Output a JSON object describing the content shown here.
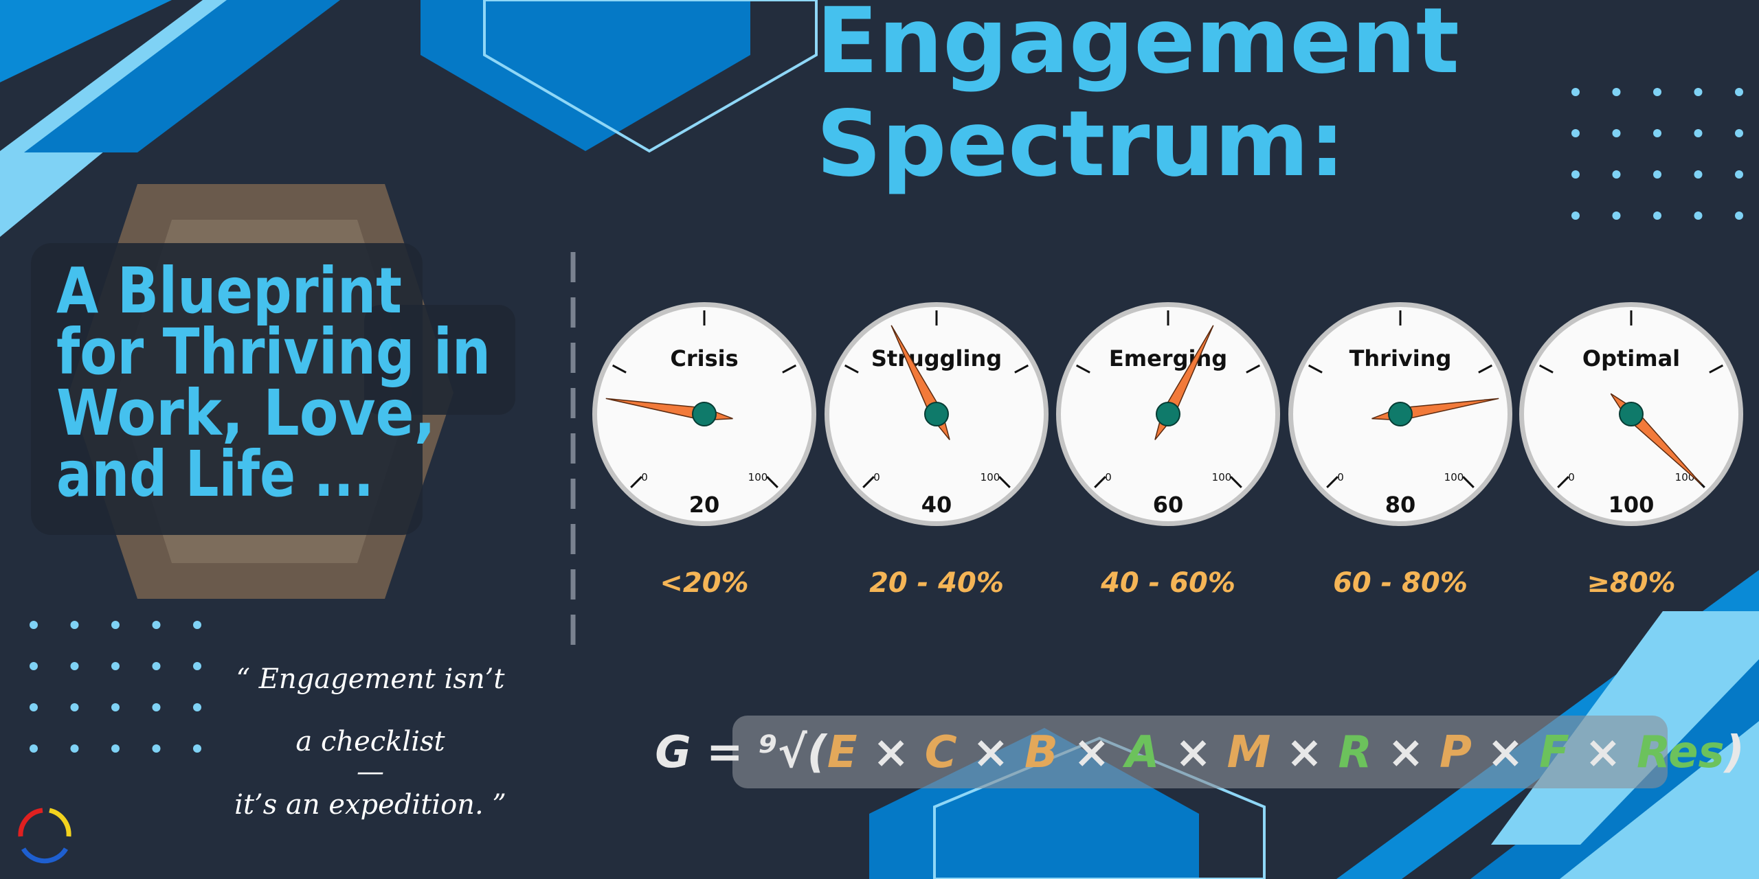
{
  "title_lines": [
    "Engagement",
    "Spectrum:"
  ],
  "subtitle_lines": [
    "A Blueprint",
    "for Thriving in",
    "Work, Love,",
    "and Life ..."
  ],
  "gauge_scale": {
    "min": 0,
    "max": 100
  },
  "gauges": [
    {
      "label": "Crisis",
      "value": 20,
      "range": "<20%"
    },
    {
      "label": "Struggling",
      "value": 40,
      "range": "20 - 40%"
    },
    {
      "label": "Emerging",
      "value": 60,
      "range": "40 - 60%"
    },
    {
      "label": "Thriving",
      "value": 80,
      "range": "60 - 80%"
    },
    {
      "label": "Optimal",
      "value": 100,
      "range": "≥80%"
    }
  ],
  "quote_lines": [
    "“ Engagement isn’t",
    "a checklist",
    "—",
    "it’s an expedition. ”"
  ],
  "formula": [
    {
      "text": "G = ⁹√(",
      "color": "#e8e8e8"
    },
    {
      "text": "E",
      "color": "#e3a85a"
    },
    {
      "text": " × ",
      "color": "#e8e8e8"
    },
    {
      "text": "C",
      "color": "#e3a85a"
    },
    {
      "text": " × ",
      "color": "#e8e8e8"
    },
    {
      "text": "B",
      "color": "#e3a85a"
    },
    {
      "text": " × ",
      "color": "#e8e8e8"
    },
    {
      "text": "A",
      "color": "#6cc25c"
    },
    {
      "text": " × ",
      "color": "#e8e8e8"
    },
    {
      "text": "M",
      "color": "#e3a85a"
    },
    {
      "text": " × ",
      "color": "#e8e8e8"
    },
    {
      "text": "R",
      "color": "#6cc25c"
    },
    {
      "text": " × ",
      "color": "#e8e8e8"
    },
    {
      "text": "P",
      "color": "#e3a85a"
    },
    {
      "text": " × ",
      "color": "#e8e8e8"
    },
    {
      "text": "F",
      "color": "#6cc25c"
    },
    {
      "text": " × ",
      "color": "#e8e8e8"
    },
    {
      "text": "Res",
      "color": "#6cc25c"
    },
    {
      "text": ")",
      "color": "#e8e8e8"
    }
  ]
}
